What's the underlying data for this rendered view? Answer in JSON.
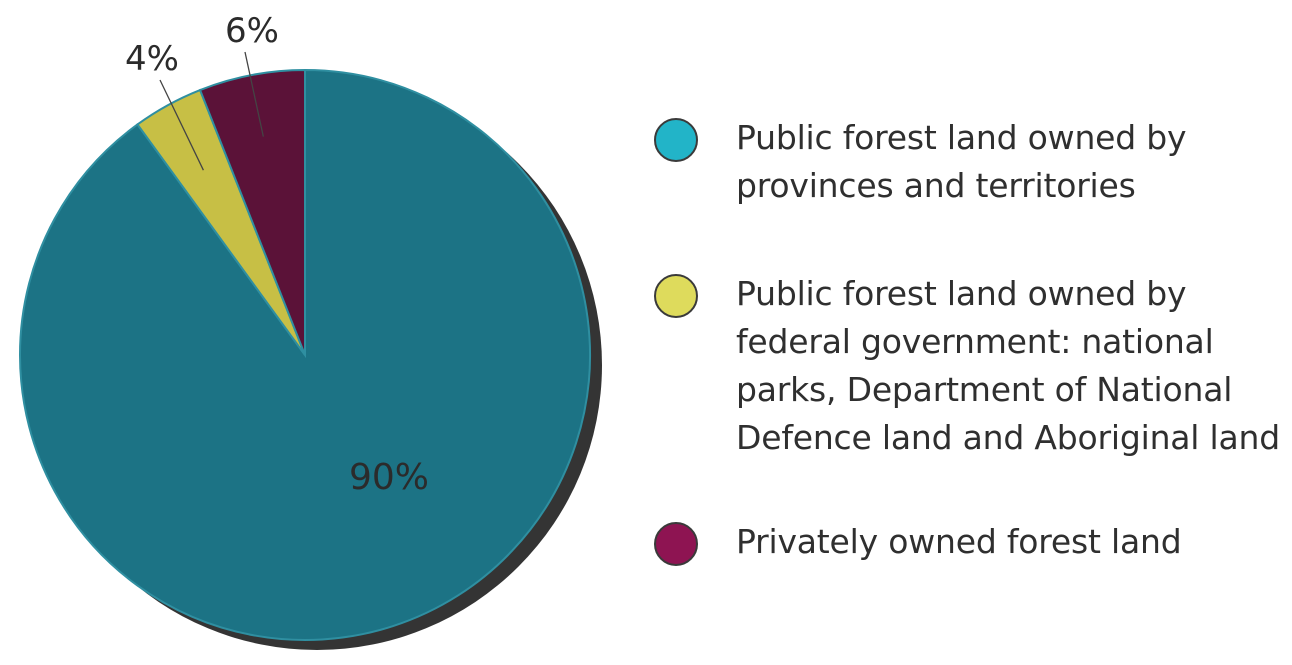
{
  "chart_data": {
    "type": "pie",
    "slices": [
      {
        "label": "Public forest land owned by provinces and territories",
        "value": 90,
        "display": "90%",
        "color": "#1c7385"
      },
      {
        "label": "Public forest land owned by federal government: national parks, Department of National Defence land and Aboriginal land",
        "value": 4,
        "display": "4%",
        "color": "#c7bf45"
      },
      {
        "label": "Privately owned forest land",
        "value": 6,
        "display": "6%",
        "color": "#5b1238"
      }
    ],
    "legend_colors": [
      "#22b4c8",
      "#dedb5c",
      "#8e1452"
    ],
    "start": "12 o'clock",
    "direction": "clockwise",
    "legend_position": "right"
  }
}
